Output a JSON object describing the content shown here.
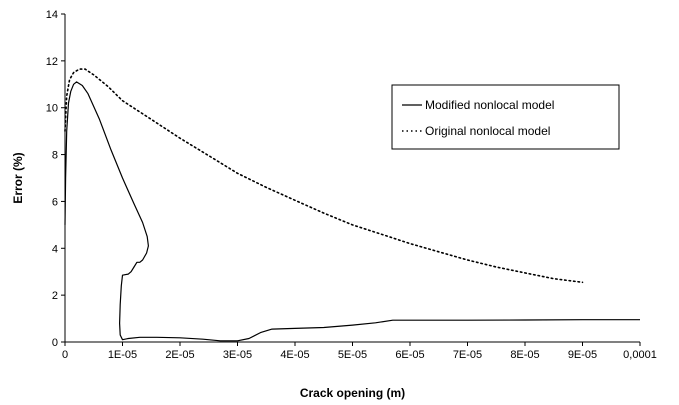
{
  "chart_data": {
    "type": "line",
    "title": "",
    "xlabel": "Crack opening (m)",
    "ylabel": "Error (%)",
    "xlim": [
      0,
      0.0001
    ],
    "ylim": [
      0,
      14
    ],
    "x_ticks": [
      0,
      1e-05,
      2e-05,
      3e-05,
      4e-05,
      5e-05,
      6e-05,
      7e-05,
      8e-05,
      9e-05,
      0.0001
    ],
    "x_tick_labels": [
      "0",
      "1E-05",
      "2E-05",
      "3E-05",
      "4E-05",
      "5E-05",
      "6E-05",
      "7E-05",
      "8E-05",
      "9E-05",
      "0,0001"
    ],
    "y_ticks": [
      0,
      2,
      4,
      6,
      8,
      10,
      12,
      14
    ],
    "y_tick_labels": [
      "0",
      "2",
      "4",
      "6",
      "8",
      "10",
      "12",
      "14"
    ],
    "grid": false,
    "legend_position": "upper-right",
    "series": [
      {
        "name": "Modified nonlocal model",
        "style": "solid",
        "color": "#000000",
        "points": [
          [
            0,
            5.0
          ],
          [
            1e-07,
            7.0
          ],
          [
            3e-07,
            9.0
          ],
          [
            6e-07,
            10.2
          ],
          [
            1e-06,
            10.7
          ],
          [
            1.5e-06,
            11.0
          ],
          [
            2e-06,
            11.1
          ],
          [
            3e-06,
            10.95
          ],
          [
            4e-06,
            10.6
          ],
          [
            6e-06,
            9.5
          ],
          [
            8e-06,
            8.2
          ],
          [
            1e-05,
            7.0
          ],
          [
            1.2e-05,
            5.9
          ],
          [
            1.35e-05,
            5.1
          ],
          [
            1.43e-05,
            4.5
          ],
          [
            1.45e-05,
            4.1
          ],
          [
            1.42e-05,
            3.8
          ],
          [
            1.35e-05,
            3.5
          ],
          [
            1.3e-05,
            3.4
          ],
          [
            1.25e-05,
            3.4
          ],
          [
            1.2e-05,
            3.2
          ],
          [
            1.15e-05,
            3.0
          ],
          [
            1.1e-05,
            2.9
          ],
          [
            1e-05,
            2.85
          ],
          [
            9.8e-06,
            2.4
          ],
          [
            9.6e-06,
            1.6
          ],
          [
            9.5e-06,
            0.8
          ],
          [
            9.6e-06,
            0.3
          ],
          [
            1e-05,
            0.1
          ],
          [
            1.1e-05,
            0.15
          ],
          [
            1.3e-05,
            0.2
          ],
          [
            1.6e-05,
            0.2
          ],
          [
            2e-05,
            0.18
          ],
          [
            2.4e-05,
            0.12
          ],
          [
            2.7e-05,
            0.05
          ],
          [
            3e-05,
            0.05
          ],
          [
            3.2e-05,
            0.15
          ],
          [
            3.4e-05,
            0.4
          ],
          [
            3.6e-05,
            0.55
          ],
          [
            4e-05,
            0.58
          ],
          [
            4.5e-05,
            0.62
          ],
          [
            5e-05,
            0.72
          ],
          [
            5.4e-05,
            0.82
          ],
          [
            5.7e-05,
            0.93
          ],
          [
            6e-05,
            0.93
          ],
          [
            7e-05,
            0.93
          ],
          [
            8e-05,
            0.94
          ],
          [
            9e-05,
            0.95
          ],
          [
            0.0001,
            0.95
          ]
        ]
      },
      {
        "name": "Original nonlocal model",
        "style": "dotted",
        "color": "#000000",
        "points": [
          [
            0,
            9.0
          ],
          [
            3e-07,
            10.5
          ],
          [
            8e-07,
            11.2
          ],
          [
            1.5e-06,
            11.5
          ],
          [
            2.5e-06,
            11.65
          ],
          [
            3.5e-06,
            11.65
          ],
          [
            5e-06,
            11.4
          ],
          [
            7.5e-06,
            10.9
          ],
          [
            1e-05,
            10.3
          ],
          [
            1.5e-05,
            9.5
          ],
          [
            2e-05,
            8.7
          ],
          [
            2.5e-05,
            7.95
          ],
          [
            3e-05,
            7.2
          ],
          [
            3.5e-05,
            6.6
          ],
          [
            4e-05,
            6.05
          ],
          [
            4.5e-05,
            5.5
          ],
          [
            5e-05,
            5.0
          ],
          [
            5.5e-05,
            4.6
          ],
          [
            6e-05,
            4.2
          ],
          [
            6.5e-05,
            3.85
          ],
          [
            7e-05,
            3.5
          ],
          [
            7.5e-05,
            3.2
          ],
          [
            8e-05,
            2.95
          ],
          [
            8.5e-05,
            2.7
          ],
          [
            9e-05,
            2.55
          ]
        ]
      }
    ]
  }
}
